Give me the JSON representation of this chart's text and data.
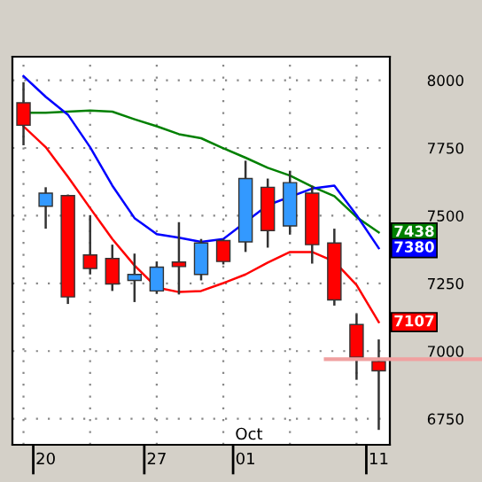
{
  "chart_data": {
    "type": "candlestick",
    "categories": [
      null,
      "20",
      null,
      null,
      null,
      null,
      "27",
      null,
      null,
      null,
      "01",
      null,
      null,
      null,
      null,
      null,
      "11"
    ],
    "ohlc": [
      [
        7917,
        7993,
        7760,
        7834
      ],
      [
        7535,
        7605,
        7452,
        7583
      ],
      [
        7574,
        7578,
        7174,
        7200
      ],
      [
        7355,
        7502,
        7283,
        7305
      ],
      [
        7342,
        7393,
        7222,
        7248
      ],
      [
        7261,
        7360,
        7181,
        7283
      ],
      [
        7222,
        7331,
        7211,
        7310
      ],
      [
        7329,
        7476,
        7209,
        7312
      ],
      [
        7283,
        7414,
        7261,
        7399
      ],
      [
        7408,
        7414,
        7320,
        7331
      ],
      [
        7403,
        7703,
        7366,
        7637
      ],
      [
        7605,
        7637,
        7382,
        7445
      ],
      [
        7462,
        7666,
        7430,
        7622
      ],
      [
        7583,
        7611,
        7323,
        7393
      ],
      [
        7399,
        7452,
        7168,
        7189
      ],
      [
        7098,
        7137,
        6894,
        6977
      ],
      [
        6962,
        7043,
        6709,
        6927
      ]
    ],
    "colors": [
      "#ff0000",
      "#3399ff",
      "#ff0000",
      "#ff0000",
      "#ff0000",
      "#3399ff",
      "#3399ff",
      "#ff0000",
      "#3399ff",
      "#ff0000",
      "#3399ff",
      "#ff0000",
      "#3399ff",
      "#ff0000",
      "#ff0000",
      "#ff0000",
      "#ff0000"
    ],
    "series": [
      {
        "type": "line",
        "color": "#008000",
        "values": [
          7880,
          7880,
          7884,
          7888,
          7884,
          7856,
          7830,
          7801,
          7786,
          7749,
          7714,
          7677,
          7648,
          7607,
          7572,
          7495,
          7438
        ],
        "value_labels": [
          null,
          null,
          null,
          null,
          null,
          null,
          null,
          null,
          null,
          null,
          null,
          null,
          null,
          null,
          null,
          null,
          "7438"
        ]
      },
      {
        "type": "line",
        "color": "#0000ff",
        "values": [
          8015,
          7939,
          7873,
          7753,
          7611,
          7491,
          7432,
          7419,
          7403,
          7414,
          null,
          7539,
          null,
          7600,
          7611,
          7502,
          7380
        ],
        "value_labels": [
          null,
          null,
          null,
          null,
          null,
          null,
          null,
          null,
          null,
          null,
          null,
          null,
          null,
          null,
          null,
          null,
          "7380"
        ]
      },
      {
        "type": "line",
        "color": "#ff0000",
        "values": [
          7830,
          7753,
          7644,
          7528,
          7414,
          7316,
          7235,
          7218,
          7222,
          7251,
          7283,
          7327,
          7366,
          7366,
          7331,
          7244,
          7107
        ],
        "value_labels": [
          null,
          null,
          null,
          null,
          null,
          null,
          null,
          null,
          null,
          null,
          null,
          null,
          null,
          null,
          null,
          null,
          "7107"
        ]
      }
    ],
    "ylim": [
      6654,
      8087
    ],
    "yticks": [
      6750,
      7000,
      7250,
      7500,
      7750,
      8000
    ],
    "grid": true,
    "ref_lines": [
      {
        "axis": "y",
        "value": 6970,
        "color": "#f0a0a0"
      }
    ],
    "annotations": [
      "Oct"
    ]
  }
}
